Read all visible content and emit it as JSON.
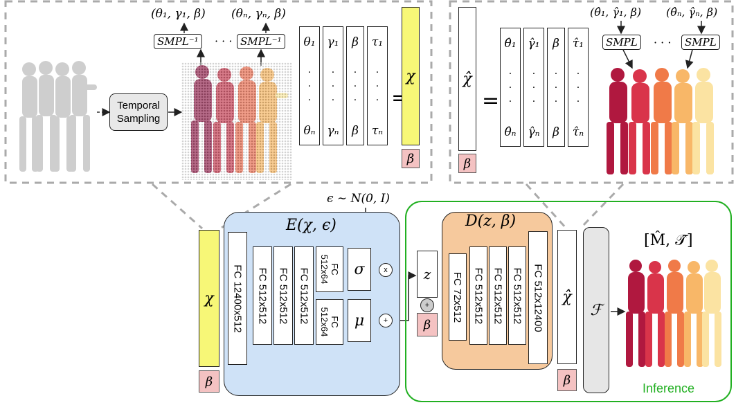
{
  "panels": {
    "encoding": {
      "smpl_inv_label": "SMPL⁻¹",
      "param_label_1": "(θ₁, γ₁, β)",
      "param_label_n": "(θₙ, γₙ, β)",
      "dots": "· · ·",
      "temporal_sampling_line1": "Temporal",
      "temporal_sampling_line2": "Sampling",
      "matrix_columns": [
        {
          "top": "θ₁",
          "bottom": "θₙ"
        },
        {
          "top": "γ₁",
          "bottom": "γₙ"
        },
        {
          "top": "β",
          "bottom": "β"
        },
        {
          "top": "τ₁",
          "bottom": "τₙ"
        }
      ],
      "equals": "=",
      "chi": "χ",
      "beta": "β"
    },
    "decoding": {
      "smpl_label": "SMPL",
      "param_label_1": "(θ̂₁, γ̂₁, β)",
      "param_label_n": "(θ̂ₙ, γ̂ₙ, β)",
      "dots": "· · ·",
      "chi_hat": "χ̂",
      "equals": "=",
      "beta": "β",
      "matrix_columns": [
        {
          "top": "θ̂₁",
          "bottom": "θ̂ₙ"
        },
        {
          "top": "γ̂₁",
          "bottom": "γ̂ₙ"
        },
        {
          "top": "β",
          "bottom": "β"
        },
        {
          "top": "τ̂₁",
          "bottom": "τ̂ₙ"
        }
      ]
    }
  },
  "network": {
    "noise_label": "ϵ ∼ N(0, I)",
    "chi": "χ",
    "beta": "β",
    "encoder": {
      "title": "E(χ, ϵ)",
      "layers": [
        "FC 12400x512",
        "FC 512x512",
        "FC 512x512",
        "FC 512x512"
      ],
      "sigma_layer_line1": "FC",
      "sigma_layer_line2": "512x64",
      "mu_layer_line1": "FC",
      "mu_layer_line2": "512x64",
      "sigma": "σ",
      "mu": "μ",
      "times": "x",
      "plus": "+"
    },
    "z": "z",
    "plus": "+",
    "decoder": {
      "title": "D(z, β)",
      "layers": [
        "FC 72x512",
        "FC 512x512",
        "FC 512x512",
        "FC 512x512",
        "FC 512x12400"
      ]
    },
    "chi_hat": "χ̂",
    "f": "ℱ",
    "output_label": "[M̂, 𝒯̂]",
    "inference_label": "Inference",
    "colors": {
      "encoder_fill": "#cfe2f7",
      "decoder_fill": "#f6c99d",
      "inference_border": "#22b022",
      "chi_fill": "#f7f777",
      "beta_fill": "#f4c2c2"
    }
  }
}
